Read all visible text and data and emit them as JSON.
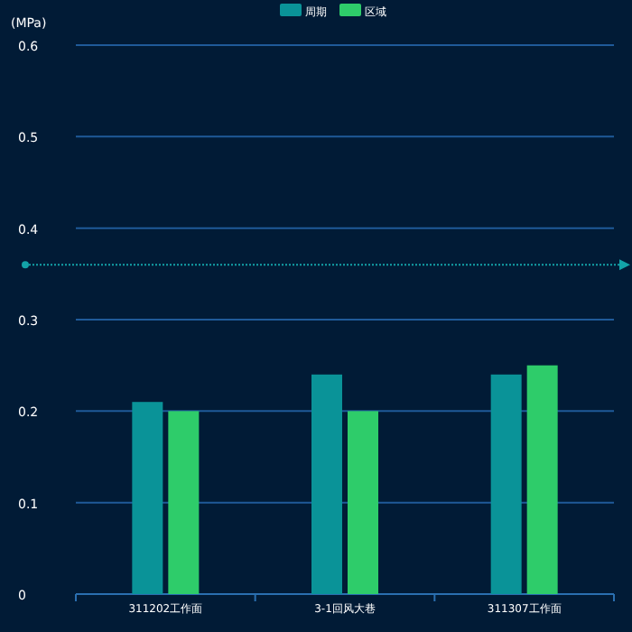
{
  "chart_data": {
    "type": "bar",
    "ylabel": "(MPa)",
    "categories": [
      "311202工作面",
      "3-1回风大巷",
      "311307工作面"
    ],
    "series": [
      {
        "name": "周期",
        "color": "#0a9398",
        "values": [
          0.21,
          0.24,
          0.24
        ]
      },
      {
        "name": "区域",
        "color": "#2ecc6a",
        "values": [
          0.2,
          0.2,
          0.25
        ]
      }
    ],
    "ylim": [
      0,
      0.6
    ],
    "yticks": [
      0,
      0.1,
      0.2,
      0.3,
      0.4,
      0.5,
      0.6
    ],
    "grid": "y",
    "legend": "top",
    "ref_lines": [
      {
        "axis": "y",
        "value": 0.36,
        "label": null,
        "color": "#13a3a8",
        "line_style": "dotted"
      }
    ]
  }
}
